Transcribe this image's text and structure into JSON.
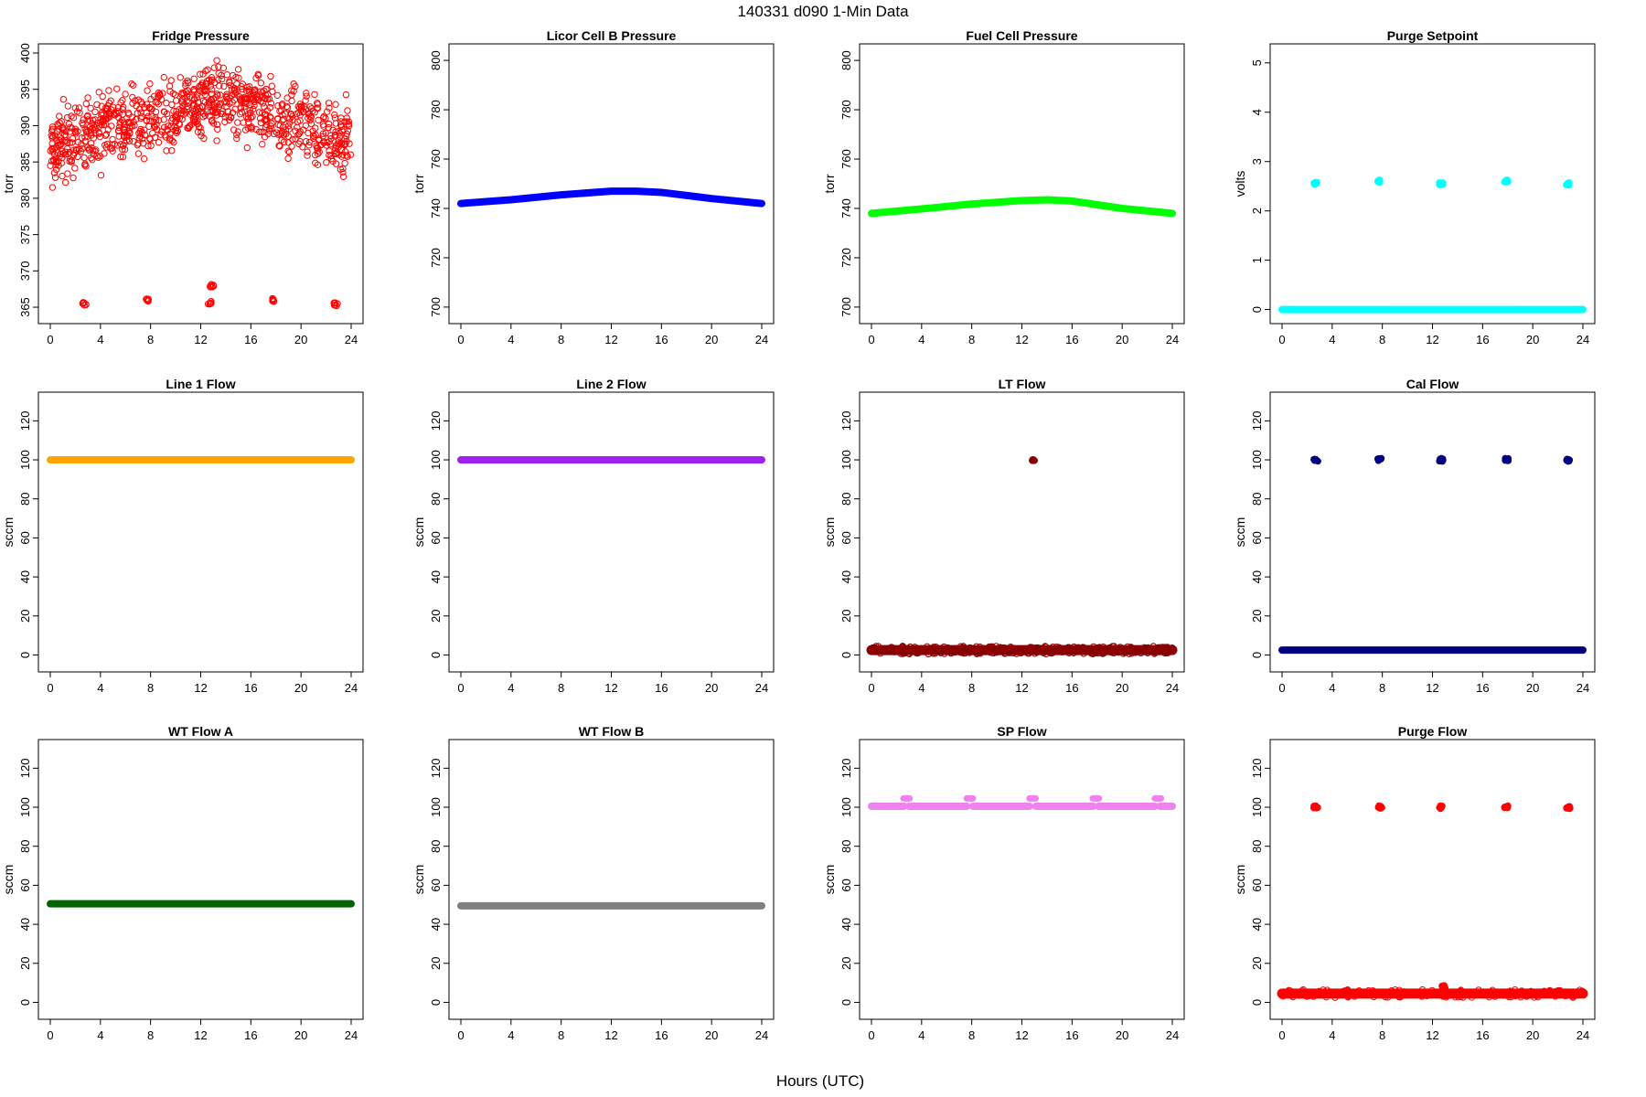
{
  "page": {
    "title": "140331    d090    1-Min Data",
    "xlabel": "Hours (UTC)"
  },
  "chart_data": [
    {
      "type": "scatter",
      "title": "Fridge Pressure",
      "ylabel": "torr",
      "xlim": [
        0,
        24
      ],
      "xticks": [
        0,
        4,
        8,
        12,
        16,
        20,
        24
      ],
      "ylim": [
        364,
        400
      ],
      "yticks": [
        365,
        370,
        375,
        380,
        385,
        390,
        395,
        400
      ],
      "marker": "open",
      "color": "#ff0000",
      "series": [
        {
          "kind": "scatter_band",
          "x": [
            0,
            24
          ],
          "center": [
            387,
            389,
            391,
            392,
            394,
            392,
            390,
            388
          ],
          "spread": 3.5
        },
        {
          "kind": "clusters",
          "points": [
            [
              2.7,
              365.5
            ],
            [
              7.8,
              366
            ],
            [
              12.7,
              365.6
            ],
            [
              12.9,
              368
            ],
            [
              17.9,
              366
            ],
            [
              22.8,
              365.4
            ]
          ]
        }
      ]
    },
    {
      "type": "line",
      "title": "Licor Cell B Pressure",
      "ylabel": "torr",
      "xlim": [
        0,
        24
      ],
      "xticks": [
        0,
        4,
        8,
        12,
        16,
        20,
        24
      ],
      "ylim": [
        697,
        803
      ],
      "yticks": [
        700,
        720,
        740,
        760,
        780,
        800
      ],
      "color": "#0000ff",
      "series": [
        {
          "kind": "line",
          "x": [
            0,
            4,
            8,
            12,
            14,
            16,
            20,
            24
          ],
          "y": [
            742,
            743.5,
            745.5,
            747,
            747,
            746.5,
            744,
            742
          ]
        }
      ]
    },
    {
      "type": "line",
      "title": "Fuel Cell Pressure",
      "ylabel": "torr",
      "xlim": [
        0,
        24
      ],
      "xticks": [
        0,
        4,
        8,
        12,
        16,
        20,
        24
      ],
      "ylim": [
        697,
        803
      ],
      "yticks": [
        700,
        720,
        740,
        760,
        780,
        800
      ],
      "color": "#00ff00",
      "series": [
        {
          "kind": "line",
          "x": [
            0,
            4,
            8,
            12,
            14,
            16,
            20,
            24
          ],
          "y": [
            738,
            739.8,
            741.8,
            743.2,
            743.5,
            743,
            740,
            738
          ]
        }
      ]
    },
    {
      "type": "scatter",
      "title": "Purge Setpoint",
      "ylabel": "volts",
      "xlim": [
        0,
        24
      ],
      "xticks": [
        0,
        4,
        8,
        12,
        16,
        20,
        24
      ],
      "ylim": [
        -0.1,
        5.2
      ],
      "yticks": [
        0,
        1,
        2,
        3,
        4,
        5
      ],
      "color": "#00ffff",
      "series": [
        {
          "kind": "line",
          "x": [
            0,
            24
          ],
          "y": [
            0,
            0
          ]
        },
        {
          "kind": "clusters",
          "points": [
            [
              2.7,
              2.55
            ],
            [
              7.8,
              2.6
            ],
            [
              12.7,
              2.55
            ],
            [
              17.9,
              2.6
            ],
            [
              22.8,
              2.55
            ]
          ]
        }
      ]
    },
    {
      "type": "line",
      "title": "Line 1 Flow",
      "ylabel": "sccm",
      "xlim": [
        0,
        24
      ],
      "xticks": [
        0,
        4,
        8,
        12,
        16,
        20,
        24
      ],
      "ylim": [
        -4,
        130
      ],
      "yticks": [
        0,
        20,
        40,
        60,
        80,
        100,
        120
      ],
      "color": "#ffa500",
      "series": [
        {
          "kind": "line",
          "x": [
            0,
            24
          ],
          "y": [
            100,
            100
          ]
        }
      ]
    },
    {
      "type": "line",
      "title": "Line 2 Flow",
      "ylabel": "sccm",
      "xlim": [
        0,
        24
      ],
      "xticks": [
        0,
        4,
        8,
        12,
        16,
        20,
        24
      ],
      "ylim": [
        -4,
        130
      ],
      "yticks": [
        0,
        20,
        40,
        60,
        80,
        100,
        120
      ],
      "color": "#a020f0",
      "series": [
        {
          "kind": "line",
          "x": [
            0,
            24
          ],
          "y": [
            100,
            100
          ]
        }
      ]
    },
    {
      "type": "scatter",
      "title": "LT Flow",
      "ylabel": "sccm",
      "xlim": [
        0,
        24
      ],
      "xticks": [
        0,
        4,
        8,
        12,
        16,
        20,
        24
      ],
      "ylim": [
        -4,
        130
      ],
      "yticks": [
        0,
        20,
        40,
        60,
        80,
        100,
        120
      ],
      "color": "#8b0000",
      "series": [
        {
          "kind": "band",
          "x": [
            0,
            12.8
          ],
          "y": [
            2.5,
            2.5
          ]
        },
        {
          "kind": "band",
          "x": [
            13.0,
            24
          ],
          "y": [
            2.5,
            2.5
          ]
        },
        {
          "kind": "clusters",
          "points": [
            [
              12.9,
              100
            ]
          ]
        }
      ]
    },
    {
      "type": "scatter",
      "title": "Cal Flow",
      "ylabel": "sccm",
      "xlim": [
        0,
        24
      ],
      "xticks": [
        0,
        4,
        8,
        12,
        16,
        20,
        24
      ],
      "ylim": [
        -4,
        130
      ],
      "yticks": [
        0,
        20,
        40,
        60,
        80,
        100,
        120
      ],
      "color": "#000080",
      "series": [
        {
          "kind": "line",
          "x": [
            0,
            24
          ],
          "y": [
            2.5,
            2.5
          ]
        },
        {
          "kind": "clusters",
          "points": [
            [
              2.7,
              100
            ],
            [
              7.8,
              100
            ],
            [
              12.7,
              100
            ],
            [
              17.9,
              100
            ],
            [
              22.8,
              100
            ]
          ]
        }
      ]
    },
    {
      "type": "line",
      "title": "WT Flow A",
      "ylabel": "sccm",
      "xlim": [
        0,
        24
      ],
      "xticks": [
        0,
        4,
        8,
        12,
        16,
        20,
        24
      ],
      "ylim": [
        -4,
        130
      ],
      "yticks": [
        0,
        20,
        40,
        60,
        80,
        100,
        120
      ],
      "color": "#006400",
      "series": [
        {
          "kind": "line",
          "x": [
            0,
            24
          ],
          "y": [
            50.5,
            50.5
          ]
        }
      ]
    },
    {
      "type": "line",
      "title": "WT Flow B",
      "ylabel": "sccm",
      "xlim": [
        0,
        24
      ],
      "xticks": [
        0,
        4,
        8,
        12,
        16,
        20,
        24
      ],
      "ylim": [
        -4,
        130
      ],
      "yticks": [
        0,
        20,
        40,
        60,
        80,
        100,
        120
      ],
      "color": "#808080",
      "series": [
        {
          "kind": "line",
          "x": [
            0,
            24
          ],
          "y": [
            49.5,
            49.5
          ]
        }
      ]
    },
    {
      "type": "scatter",
      "title": "SP Flow",
      "ylabel": "sccm",
      "xlim": [
        0,
        24
      ],
      "xticks": [
        0,
        4,
        8,
        12,
        16,
        20,
        24
      ],
      "ylim": [
        -4,
        130
      ],
      "yticks": [
        0,
        20,
        40,
        60,
        80,
        100,
        120
      ],
      "color": "#ee82ee",
      "series": [
        {
          "kind": "line",
          "x": [
            0,
            2.6
          ],
          "y": [
            100.5,
            100.5
          ]
        },
        {
          "kind": "line",
          "x": [
            3.0,
            7.6
          ],
          "y": [
            100.5,
            100.5
          ]
        },
        {
          "kind": "line",
          "x": [
            8.1,
            12.6
          ],
          "y": [
            100.5,
            100.5
          ]
        },
        {
          "kind": "line",
          "x": [
            13.1,
            17.7
          ],
          "y": [
            100.5,
            100.5
          ]
        },
        {
          "kind": "line",
          "x": [
            18.1,
            22.6
          ],
          "y": [
            100.5,
            100.5
          ]
        },
        {
          "kind": "line",
          "x": [
            23.0,
            24
          ],
          "y": [
            100.5,
            100.5
          ]
        },
        {
          "kind": "pills",
          "points": [
            [
              2.8,
              104.5
            ],
            [
              7.85,
              104.5
            ],
            [
              12.85,
              104.5
            ],
            [
              17.9,
              104.5
            ],
            [
              22.85,
              104.5
            ]
          ]
        }
      ]
    },
    {
      "type": "scatter",
      "title": "Purge Flow",
      "ylabel": "sccm",
      "xlim": [
        0,
        24
      ],
      "xticks": [
        0,
        4,
        8,
        12,
        16,
        20,
        24
      ],
      "ylim": [
        -4,
        130
      ],
      "yticks": [
        0,
        20,
        40,
        60,
        80,
        100,
        120
      ],
      "color": "#ff0000",
      "series": [
        {
          "kind": "band",
          "x": [
            0,
            24
          ],
          "y": [
            4.5,
            4.5
          ]
        },
        {
          "kind": "clusters",
          "points": [
            [
              2.7,
              100
            ],
            [
              7.8,
              100
            ],
            [
              12.7,
              100
            ],
            [
              17.9,
              100
            ],
            [
              22.8,
              100
            ],
            [
              12.9,
              8
            ]
          ]
        }
      ]
    }
  ]
}
